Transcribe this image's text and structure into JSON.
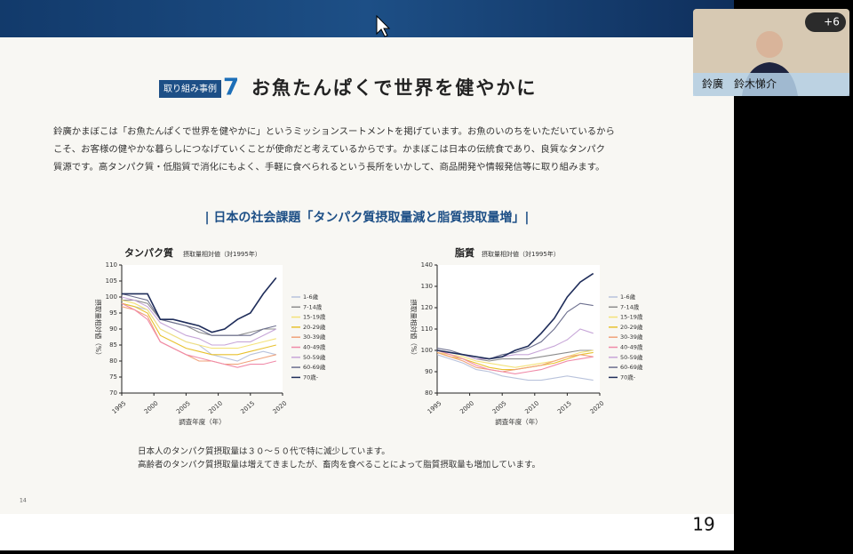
{
  "meeting": {
    "badge": "+6",
    "participant": "鈴廣　鈴木悌介",
    "page_number": "19"
  },
  "slide": {
    "tag": "取り組み事例",
    "number": "7",
    "title": "お魚たんぱくで世界を健やかに",
    "body": [
      "鈴廣かまぼこは「お魚たんぱくで世界を健やかに」というミッションスートメントを掲げています。お魚のいのちをいただいているから",
      "こそ、お客様の健やかな暮らしにつなげていくことが使命だと考えているからです。かまぼこは日本の伝統食であり、良質なタンパク",
      "質源です。高タンパク質・低脂質で消化にもよく、手軽に食べられるという長所をいかして、商品開発や情報発信等に取り組みます。"
    ],
    "section_title": "| 日本の社会課題「タンパク質摂取量減と脂質摂取量増」|",
    "notes": [
      "日本人のタンパク質摂取量は３０～５０代で特に減少しています。",
      "高齢者のタンパク質摂取量は増えてきましたが、畜肉を食べることによって脂質摂取量も増加しています。"
    ],
    "page": "14"
  },
  "chart_data": [
    {
      "type": "line",
      "title": "タンパク質",
      "subtitle": "摂取量相対値（対1995年）",
      "xlabel": "調査年度（年）",
      "ylabel": "摂取量相対値（%）",
      "x": [
        1995,
        1997,
        1999,
        2001,
        2003,
        2005,
        2007,
        2009,
        2011,
        2013,
        2015,
        2017,
        2019
      ],
      "xlim": [
        1995,
        2020
      ],
      "xticks": [
        1995,
        2000,
        2005,
        2010,
        2015,
        2020
      ],
      "ylim": [
        70,
        110
      ],
      "yticks": [
        70,
        75,
        80,
        85,
        90,
        95,
        100,
        105,
        110
      ],
      "legend": "right",
      "series": [
        {
          "name": "1-6歳",
          "color": "#b9c3dc",
          "values": [
            98,
            97,
            96,
            90,
            88,
            86,
            85,
            82,
            81,
            80,
            82,
            83,
            82
          ]
        },
        {
          "name": "7-14歳",
          "color": "#8c8c8c",
          "values": [
            99,
            99,
            98,
            93,
            92,
            91,
            89,
            88,
            88,
            88,
            89,
            90,
            90
          ]
        },
        {
          "name": "15-19歳",
          "color": "#f4e27a",
          "values": [
            99,
            98,
            96,
            90,
            88,
            86,
            85,
            84,
            84,
            84,
            85,
            86,
            87
          ]
        },
        {
          "name": "20-29歳",
          "color": "#e8c12e",
          "values": [
            98,
            97,
            95,
            88,
            86,
            84,
            83,
            82,
            82,
            82,
            83,
            84,
            85
          ]
        },
        {
          "name": "30-39歳",
          "color": "#f0a27a",
          "values": [
            97,
            96,
            94,
            86,
            84,
            82,
            80,
            80,
            79,
            79,
            80,
            81,
            82
          ]
        },
        {
          "name": "40-49歳",
          "color": "#f08aa8",
          "values": [
            98,
            96,
            93,
            86,
            84,
            82,
            81,
            80,
            79,
            78,
            79,
            79,
            80
          ]
        },
        {
          "name": "50-59歳",
          "color": "#c7a6d8",
          "values": [
            100,
            99,
            97,
            92,
            90,
            88,
            87,
            85,
            85,
            86,
            86,
            88,
            90
          ]
        },
        {
          "name": "60-69歳",
          "color": "#6c6f8e",
          "values": [
            101,
            100,
            99,
            93,
            92,
            91,
            90,
            88,
            88,
            88,
            88,
            90,
            91
          ]
        },
        {
          "name": "70歳-",
          "color": "#1f2d5a",
          "values": [
            101,
            101,
            101,
            93,
            93,
            92,
            91,
            89,
            90,
            93,
            95,
            101,
            106
          ]
        }
      ]
    },
    {
      "type": "line",
      "title": "脂質",
      "subtitle": "摂取量相対値（対1995年）",
      "xlabel": "調査年度（年）",
      "ylabel": "摂取量相対値（%）",
      "x": [
        1995,
        1997,
        1999,
        2001,
        2003,
        2005,
        2007,
        2009,
        2011,
        2013,
        2015,
        2017,
        2019
      ],
      "xlim": [
        1995,
        2020
      ],
      "xticks": [
        1995,
        2000,
        2005,
        2010,
        2015,
        2020
      ],
      "ylim": [
        80,
        140
      ],
      "yticks": [
        80,
        90,
        100,
        110,
        120,
        130,
        140
      ],
      "legend": "right",
      "series": [
        {
          "name": "1-6歳",
          "color": "#b9c3dc",
          "values": [
            98,
            96,
            94,
            91,
            90,
            88,
            87,
            86,
            86,
            87,
            88,
            87,
            86
          ]
        },
        {
          "name": "7-14歳",
          "color": "#8c8c8c",
          "values": [
            100,
            99,
            98,
            96,
            95,
            96,
            96,
            96,
            97,
            98,
            99,
            100,
            100
          ]
        },
        {
          "name": "15-19歳",
          "color": "#f4e27a",
          "values": [
            99,
            98,
            97,
            95,
            94,
            93,
            92,
            93,
            94,
            95,
            97,
            99,
            100
          ]
        },
        {
          "name": "20-29歳",
          "color": "#e8c12e",
          "values": [
            99,
            97,
            96,
            94,
            92,
            91,
            91,
            92,
            93,
            94,
            96,
            98,
            99
          ]
        },
        {
          "name": "30-39歳",
          "color": "#f0a27a",
          "values": [
            99,
            97,
            95,
            92,
            91,
            90,
            91,
            92,
            93,
            95,
            97,
            98,
            97
          ]
        },
        {
          "name": "40-49歳",
          "color": "#f08aa8",
          "values": [
            100,
            98,
            96,
            93,
            91,
            90,
            89,
            90,
            91,
            93,
            95,
            96,
            97
          ]
        },
        {
          "name": "50-59歳",
          "color": "#c7a6d8",
          "values": [
            100,
            99,
            98,
            96,
            96,
            97,
            98,
            98,
            100,
            102,
            105,
            110,
            108
          ]
        },
        {
          "name": "60-69歳",
          "color": "#6c6f8e",
          "values": [
            101,
            100,
            98,
            97,
            96,
            98,
            99,
            101,
            104,
            110,
            118,
            122,
            121
          ]
        },
        {
          "name": "70歳-",
          "color": "#1f2d5a",
          "values": [
            100,
            99,
            98,
            97,
            96,
            97,
            100,
            102,
            108,
            115,
            125,
            132,
            136
          ]
        }
      ]
    }
  ]
}
